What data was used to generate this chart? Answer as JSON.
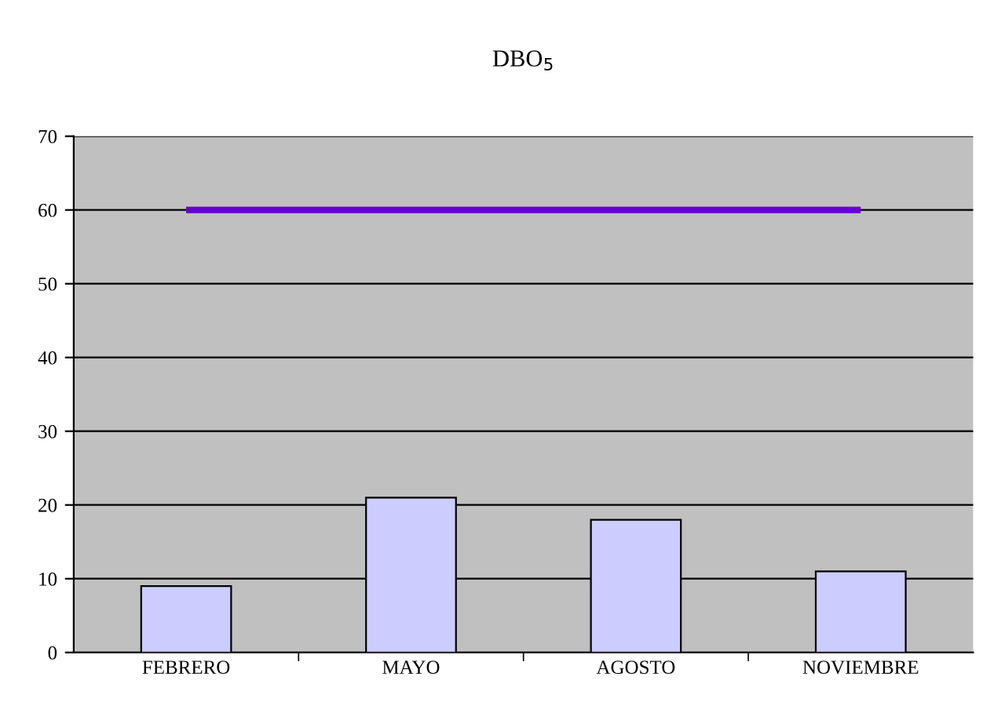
{
  "chart_data": {
    "type": "bar",
    "title": "DBO$_{5}$",
    "categories": [
      "FEBRERO",
      "MAYO",
      "AGOSTO",
      "NOVIEMBRE"
    ],
    "series": [
      {
        "color": "#ccccff",
        "values": [
          9,
          21,
          18,
          11
        ]
      },
      {
        "type": "line",
        "color": "#6600cc",
        "values": [
          60,
          60,
          60,
          60
        ]
      }
    ],
    "ylim": [
      0,
      70
    ],
    "yticks": [
      0,
      10,
      20,
      30,
      40,
      50,
      60,
      70
    ],
    "grid": "y",
    "legend": false
  }
}
